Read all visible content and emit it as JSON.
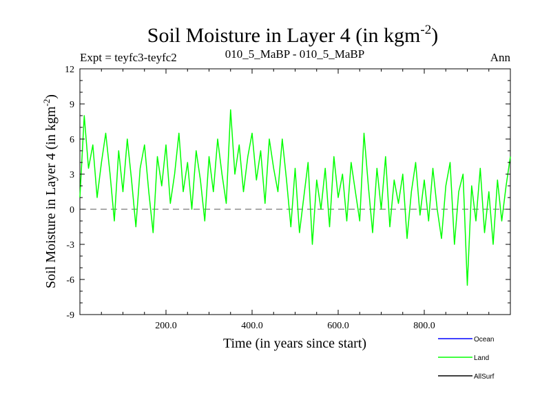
{
  "chart_data": {
    "type": "line",
    "title": "Soil Moisture in Layer 4 (in kgm",
    "title_sup": "-2",
    "title_close": ")",
    "subtitle_left": "Expt = teyfc3-teyfc2",
    "subtitle_center": "010_5_MaBP - 010_5_MaBP",
    "subtitle_right": "Ann",
    "xlabel": "Time (in years since start)",
    "ylabel": "Soil Moisture in Layer 4 (in kgm",
    "ylabel_sup": "-2",
    "ylabel_close": ")",
    "xlim": [
      0,
      1000
    ],
    "ylim": [
      -9,
      12
    ],
    "xticks": [
      200,
      400,
      600,
      800
    ],
    "xtick_labels": [
      "200.0",
      "400.0",
      "600.0",
      "800.0"
    ],
    "yticks": [
      -9,
      -6,
      -3,
      0,
      3,
      6,
      9,
      12
    ],
    "ytick_labels": [
      "-9",
      "-6",
      "-3",
      "0",
      "3",
      "6",
      "9",
      "12"
    ],
    "reference_line": 0,
    "legend": [
      {
        "name": "Ocean",
        "color": "#0000ff"
      },
      {
        "name": "Land",
        "color": "#00ff00"
      },
      {
        "name": "AllSurf",
        "color": "#000000"
      }
    ],
    "series": [
      {
        "name": "Land",
        "color": "#00ff00",
        "x": [
          0,
          10,
          20,
          30,
          40,
          50,
          60,
          70,
          80,
          90,
          100,
          110,
          120,
          130,
          140,
          150,
          160,
          170,
          180,
          190,
          200,
          210,
          220,
          230,
          240,
          250,
          260,
          270,
          280,
          290,
          300,
          310,
          320,
          330,
          340,
          350,
          360,
          370,
          380,
          390,
          400,
          410,
          420,
          430,
          440,
          450,
          460,
          470,
          480,
          490,
          500,
          510,
          520,
          530,
          540,
          550,
          560,
          570,
          580,
          590,
          600,
          610,
          620,
          630,
          640,
          650,
          660,
          670,
          680,
          690,
          700,
          710,
          720,
          730,
          740,
          750,
          760,
          770,
          780,
          790,
          800,
          810,
          820,
          830,
          840,
          850,
          860,
          870,
          880,
          890,
          900,
          910,
          920,
          930,
          940,
          950,
          960,
          970,
          980,
          990,
          1000
        ],
        "values": [
          1.0,
          8.0,
          3.5,
          5.5,
          1.0,
          4.0,
          6.5,
          3.0,
          -1.0,
          5.0,
          1.5,
          6.0,
          2.5,
          -1.5,
          3.5,
          5.5,
          1.5,
          -2.0,
          4.5,
          2.0,
          5.5,
          0.5,
          3.0,
          6.5,
          1.5,
          4.0,
          0.0,
          5.0,
          2.5,
          -1.0,
          4.5,
          1.5,
          6.0,
          3.0,
          0.5,
          8.5,
          3.0,
          5.5,
          1.5,
          4.5,
          6.5,
          2.5,
          5.0,
          0.5,
          6.0,
          3.5,
          1.5,
          6.0,
          2.5,
          -1.5,
          3.5,
          -2.0,
          1.0,
          4.0,
          -3.0,
          2.5,
          0.0,
          3.5,
          -1.5,
          4.5,
          1.0,
          3.0,
          -1.0,
          4.0,
          1.5,
          -1.0,
          6.5,
          2.0,
          -2.0,
          3.5,
          0.0,
          4.5,
          -1.5,
          2.5,
          0.5,
          3.0,
          -2.5,
          1.5,
          4.0,
          -0.5,
          2.5,
          -1.0,
          3.5,
          0.0,
          -2.5,
          2.0,
          4.0,
          -3.0,
          1.5,
          3.0,
          -6.5,
          2.0,
          -1.0,
          3.5,
          -2.0,
          1.5,
          -3.0,
          2.5,
          -1.0,
          2.0,
          4.5
        ]
      }
    ]
  }
}
